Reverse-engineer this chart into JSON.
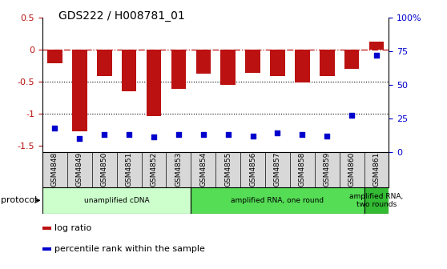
{
  "title": "GDS222 / H008781_01",
  "samples": [
    "GSM4848",
    "GSM4849",
    "GSM4850",
    "GSM4851",
    "GSM4852",
    "GSM4853",
    "GSM4854",
    "GSM4855",
    "GSM4856",
    "GSM4857",
    "GSM4858",
    "GSM4859",
    "GSM4860",
    "GSM4861"
  ],
  "log_ratio": [
    -0.22,
    -1.28,
    -0.42,
    -0.65,
    -1.04,
    -0.62,
    -0.38,
    -0.55,
    -0.37,
    -0.42,
    -0.52,
    -0.42,
    -0.3,
    0.12
  ],
  "percentile_rank": [
    18,
    10,
    13,
    13,
    11,
    13,
    13,
    13,
    12,
    14,
    13,
    12,
    27,
    72
  ],
  "bar_color": "#bb1111",
  "dot_color": "#0000cc",
  "ylim_left": [
    -1.6,
    0.5
  ],
  "ylim_right": [
    0,
    100
  ],
  "dotted_lines": [
    -0.5,
    -1.0
  ],
  "protocol_groups": [
    {
      "label": "unamplified cDNA",
      "start": 0,
      "end": 5,
      "color": "#ccffcc"
    },
    {
      "label": "amplified RNA, one round",
      "start": 6,
      "end": 12,
      "color": "#55dd55"
    },
    {
      "label": "amplified RNA,\ntwo rounds",
      "start": 13,
      "end": 13,
      "color": "#33bb33"
    }
  ],
  "legend_items": [
    {
      "label": "log ratio",
      "color": "#bb1111"
    },
    {
      "label": "percentile rank within the sample",
      "color": "#0000cc"
    }
  ],
  "right_ticks": [
    0,
    25,
    50,
    75,
    100
  ],
  "right_tick_labels": [
    "0",
    "25",
    "50",
    "75",
    "100%"
  ],
  "left_ticks": [
    -1.5,
    -1.0,
    -0.5,
    0,
    0.5
  ],
  "left_tick_labels": [
    "-1.5",
    "-1",
    "-0.5",
    "0",
    "0.5"
  ],
  "protocol_label": "protocol",
  "sample_box_color": "#d8d8d8",
  "background_color": "#ffffff"
}
